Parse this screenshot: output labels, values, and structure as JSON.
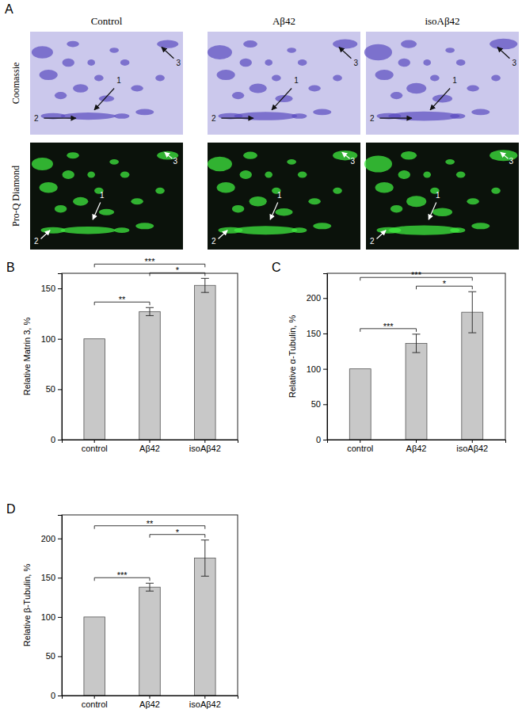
{
  "figure_a": {
    "label": "A",
    "columns": [
      "Control",
      "Aβ42",
      "isoAβ42"
    ],
    "rows": [
      "Coomassie",
      "Pro-Q Diamond"
    ],
    "arrow_labels": [
      "1",
      "2",
      "3"
    ]
  },
  "chart_data": [
    {
      "type": "bar",
      "label": "B",
      "y_label": "Relative Matrin 3, %",
      "categories": [
        "control",
        "Aβ42",
        "isoAβ42"
      ],
      "values": [
        100,
        127,
        153
      ],
      "errors": [
        0,
        4,
        7
      ],
      "color": "#c8c8c8",
      "ylim": [
        0,
        165
      ],
      "yticks": [
        0,
        50,
        100,
        150
      ],
      "significance": [
        {
          "pair": [
            0,
            1
          ],
          "label": "**"
        },
        {
          "pair": [
            0,
            2
          ],
          "label": "***"
        },
        {
          "pair": [
            1,
            2
          ],
          "label": "*"
        }
      ]
    },
    {
      "type": "bar",
      "label": "C",
      "y_label": "Relative α-Tubulin, %",
      "categories": [
        "control",
        "Aβ42",
        "isoAβ42"
      ],
      "values": [
        100,
        136,
        180
      ],
      "errors": [
        0,
        13,
        29
      ],
      "color": "#c8c8c8",
      "ylim": [
        0,
        235
      ],
      "yticks": [
        0,
        50,
        100,
        150,
        200
      ],
      "significance": [
        {
          "pair": [
            0,
            1
          ],
          "label": "***"
        },
        {
          "pair": [
            0,
            2
          ],
          "label": "***"
        },
        {
          "pair": [
            1,
            2
          ],
          "label": "*"
        }
      ]
    },
    {
      "type": "bar",
      "label": "D",
      "y_label": "Relative β-Tubulin, %",
      "categories": [
        "control",
        "Aβ42",
        "isoAβ42"
      ],
      "values": [
        100,
        138,
        175
      ],
      "errors": [
        0,
        5,
        23
      ],
      "color": "#c8c8c8",
      "ylim": [
        0,
        230
      ],
      "yticks": [
        0,
        50,
        100,
        150,
        200
      ],
      "significance": [
        {
          "pair": [
            0,
            1
          ],
          "label": "***"
        },
        {
          "pair": [
            0,
            2
          ],
          "label": "**"
        },
        {
          "pair": [
            1,
            2
          ],
          "label": "*"
        }
      ]
    }
  ]
}
